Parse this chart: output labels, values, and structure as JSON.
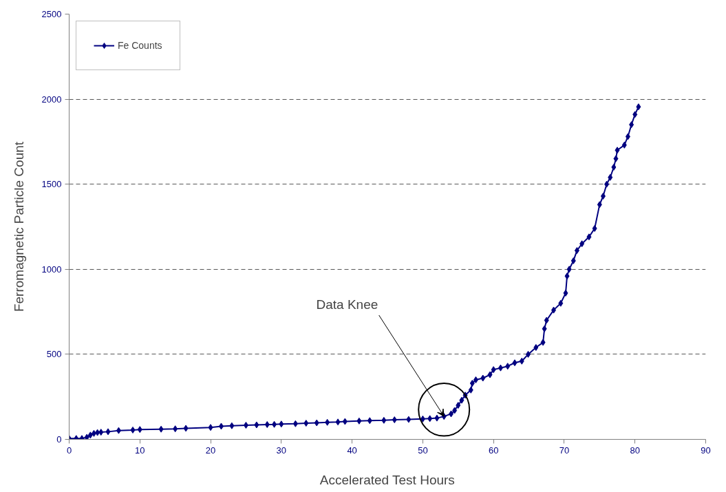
{
  "chart_data": {
    "type": "line",
    "xlabel": "Accelerated Test Hours",
    "ylabel": "Ferromagnetic Particle Count",
    "xlim": [
      0,
      90
    ],
    "xticks": [
      0,
      10,
      20,
      30,
      40,
      50,
      60,
      70,
      80,
      90
    ],
    "ylim": [
      0,
      2500
    ],
    "yticks": [
      0,
      500,
      1000,
      1500,
      2000,
      2500
    ],
    "grid": "y",
    "legend": "top left",
    "marker": "diamond",
    "line_style": "solid",
    "annotations": [
      {
        "text": "Data Knee",
        "x": 53,
        "y": 135
      }
    ],
    "series": [
      {
        "name": "Fe Counts",
        "color": "#000080",
        "x": [
          0,
          1,
          1.8,
          2.5,
          3,
          3.5,
          4,
          4.5,
          5.5,
          7,
          9,
          10,
          13,
          15,
          16.5,
          20,
          21.5,
          23,
          25,
          26.5,
          28,
          29,
          30,
          32,
          33.5,
          35,
          36.5,
          38,
          39,
          41,
          42.5,
          44.5,
          46,
          48,
          50,
          51,
          52,
          53,
          54,
          54.5,
          55,
          55.5,
          56,
          56.8,
          57,
          57.5,
          58.5,
          59.5,
          60,
          61,
          62,
          63,
          64,
          64.9,
          66,
          67,
          67.2,
          67.5,
          68.5,
          69.5,
          70.2,
          70.4,
          70.7,
          71.3,
          71.8,
          72.5,
          73.5,
          74.3,
          75,
          75.5,
          76,
          76.5,
          77,
          77.3,
          77.5,
          78.5,
          79,
          79.5,
          80,
          80.5
        ],
        "values": [
          5,
          5,
          5,
          12,
          25,
          35,
          40,
          42,
          45,
          52,
          55,
          58,
          60,
          62,
          65,
          70,
          77,
          80,
          83,
          85,
          87,
          88,
          90,
          92,
          95,
          97,
          100,
          102,
          105,
          108,
          110,
          112,
          115,
          117,
          120,
          122,
          125,
          135,
          150,
          170,
          200,
          230,
          260,
          290,
          330,
          350,
          360,
          380,
          410,
          420,
          430,
          450,
          460,
          500,
          540,
          570,
          650,
          700,
          760,
          800,
          860,
          960,
          1000,
          1050,
          1110,
          1150,
          1190,
          1240,
          1380,
          1430,
          1500,
          1540,
          1600,
          1650,
          1700,
          1730,
          1780,
          1850,
          1910,
          1955
        ]
      }
    ]
  }
}
